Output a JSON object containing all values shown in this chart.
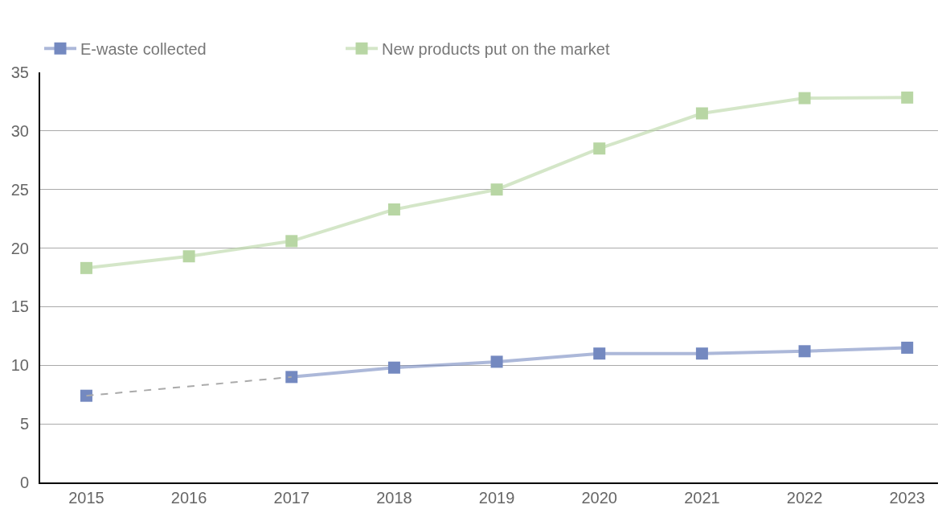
{
  "chart_data": {
    "type": "line",
    "x": [
      2015,
      2016,
      2017,
      2018,
      2019,
      2020,
      2021,
      2022,
      2023
    ],
    "xlim": [
      2014.55,
      2023.3
    ],
    "xticks": [
      2015,
      2016,
      2017,
      2018,
      2019,
      2020,
      2021,
      2022,
      2023
    ],
    "ylim": [
      0,
      35
    ],
    "yticks": [
      0,
      5,
      10,
      15,
      20,
      25,
      30,
      35
    ],
    "grid": "y",
    "legend": "top left",
    "marker": "square",
    "series": [
      {
        "name": "E-waste collected",
        "color": "#7489c0",
        "values": [
          7.4,
          null,
          9.0,
          9.8,
          10.3,
          11.0,
          11.0,
          11.2,
          11.5
        ]
      },
      {
        "name": "New products put on the market",
        "color": "#b8d6a4",
        "values": [
          18.3,
          19.3,
          20.6,
          23.3,
          25.0,
          28.5,
          31.5,
          32.8,
          32.85
        ]
      },
      {
        "x": [
          2015,
          2017
        ],
        "color": "#aaaaaa",
        "values": [
          7.4,
          9.0
        ],
        "line_style": "dashed",
        "marker": "none"
      }
    ]
  }
}
